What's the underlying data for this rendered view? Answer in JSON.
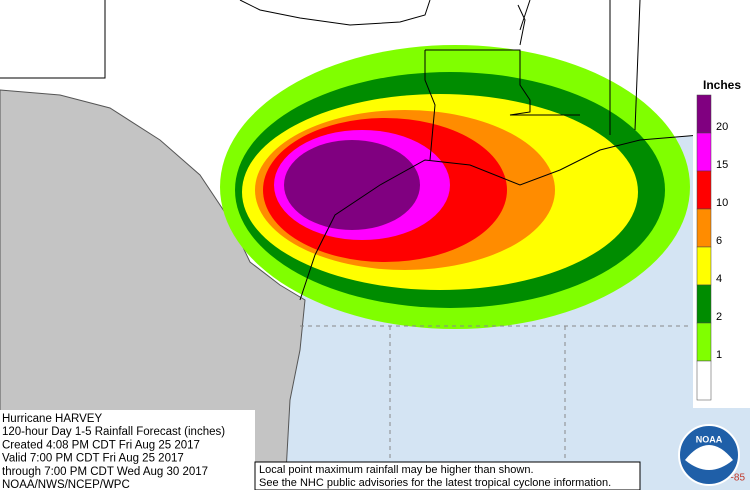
{
  "title_block": {
    "lines": [
      "Hurricane HARVEY",
      "120-hour Day 1-5 Rainfall Forecast (inches)",
      "Created 4:08 PM CDT Fri Aug 25 2017",
      "Valid 7:00 PM CDT Fri Aug 25 2017",
      "through 7:00 PM CDT Wed Aug 30 2017",
      "NOAA/NWS/NCEP/WPC"
    ]
  },
  "disclaimer": [
    "Local point maximum rainfall may be higher than shown.",
    "See the NHC public advisories for the latest tropical cyclone information."
  ],
  "legend": {
    "title": "Inches",
    "levels": [
      {
        "label": "20",
        "color": "#800080"
      },
      {
        "label": "15",
        "color": "#ff00ff"
      },
      {
        "label": "10",
        "color": "#ff0000"
      },
      {
        "label": "6",
        "color": "#ff8c00"
      },
      {
        "label": "4",
        "color": "#ffff00"
      },
      {
        "label": "2",
        "color": "#008c00"
      },
      {
        "label": "1",
        "color": "#80ff00"
      }
    ]
  },
  "corner_label": "-85",
  "logo": "NOAA"
}
